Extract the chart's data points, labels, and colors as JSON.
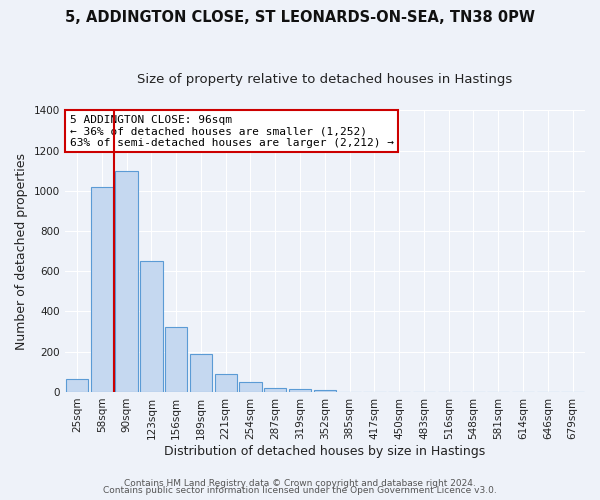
{
  "title": "5, ADDINGTON CLOSE, ST LEONARDS-ON-SEA, TN38 0PW",
  "subtitle": "Size of property relative to detached houses in Hastings",
  "xlabel": "Distribution of detached houses by size in Hastings",
  "ylabel": "Number of detached properties",
  "categories": [
    "25sqm",
    "58sqm",
    "90sqm",
    "123sqm",
    "156sqm",
    "189sqm",
    "221sqm",
    "254sqm",
    "287sqm",
    "319sqm",
    "352sqm",
    "385sqm",
    "417sqm",
    "450sqm",
    "483sqm",
    "516sqm",
    "548sqm",
    "581sqm",
    "614sqm",
    "646sqm",
    "679sqm"
  ],
  "bar_values": [
    65,
    1020,
    1100,
    650,
    325,
    190,
    90,
    48,
    22,
    15,
    10,
    0,
    0,
    0,
    0,
    0,
    0,
    0,
    0,
    0,
    0
  ],
  "bar_color": "#c5d8f0",
  "bar_edge_color": "#5b9bd5",
  "vline_position": 1.5,
  "vline_color": "#cc0000",
  "annotation_text": "5 ADDINGTON CLOSE: 96sqm\n← 36% of detached houses are smaller (1,252)\n63% of semi-detached houses are larger (2,212) →",
  "annotation_box_facecolor": "#ffffff",
  "annotation_box_edgecolor": "#cc0000",
  "ylim": [
    0,
    1400
  ],
  "yticks": [
    0,
    200,
    400,
    600,
    800,
    1000,
    1200,
    1400
  ],
  "footer_line1": "Contains HM Land Registry data © Crown copyright and database right 2024.",
  "footer_line2": "Contains public sector information licensed under the Open Government Licence v3.0.",
  "background_color": "#eef2f9",
  "grid_color": "#ffffff",
  "title_fontsize": 10.5,
  "subtitle_fontsize": 9.5,
  "axis_label_fontsize": 9,
  "tick_fontsize": 7.5,
  "annotation_fontsize": 8,
  "footer_fontsize": 6.5
}
